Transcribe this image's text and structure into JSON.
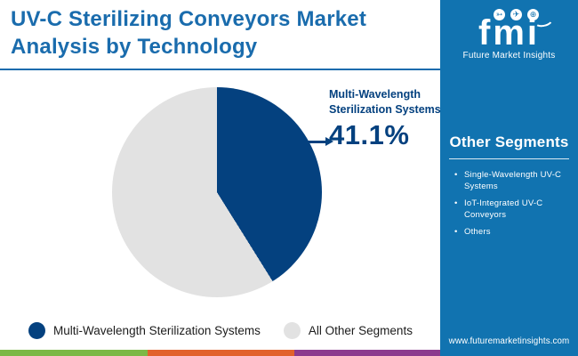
{
  "header": {
    "title": "UV-C Sterilizing Conveyors Market Analysis by Technology"
  },
  "logo": {
    "brand": "fmi",
    "tagline": "Future Market Insights",
    "icons": [
      {
        "name": "bird-icon",
        "glyph": "➳"
      },
      {
        "name": "plane-icon",
        "glyph": "✈"
      },
      {
        "name": "globe-icon",
        "glyph": "⊕"
      }
    ]
  },
  "chart_data": {
    "type": "pie",
    "title": "UV-C Sterilizing Conveyors Market Analysis by Technology",
    "slices": [
      {
        "label": "Multi-Wavelength Sterilization Systems",
        "value": 41.1,
        "color": "#04417F"
      },
      {
        "label": "All Other Segments",
        "value": 58.9,
        "color": "#E2E2E2"
      }
    ],
    "start_angle_deg": 0,
    "direction": "clockwise",
    "legend_position": "bottom",
    "annotation": {
      "label": "Multi-Wavelength Sterilization Systems",
      "value": "41.1%"
    }
  },
  "legend": {
    "items": [
      {
        "label": "Multi-Wavelength Sterilization Systems",
        "color": "#04417F"
      },
      {
        "label": "All Other Segments",
        "color": "#E2E2E2"
      }
    ]
  },
  "side_panel": {
    "heading": "Other Segments",
    "items": [
      "Single-Wavelength UV-C Systems",
      "IoT-Integrated UV-C Conveyors",
      "Others"
    ],
    "url": "www.futuremarketinsights.com"
  },
  "colors": {
    "title_blue": "#1A6CAD",
    "panel_blue": "#1173B0",
    "pie_navy": "#04417F",
    "pie_gray": "#E2E2E2",
    "bar_green": "#7CB846",
    "bar_orange": "#E2612B",
    "bar_purple": "#8C3A8E"
  }
}
